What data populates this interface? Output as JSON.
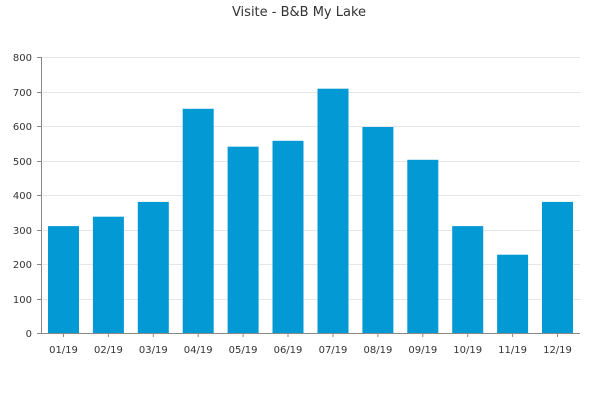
{
  "chart_data": {
    "type": "bar",
    "title": "Visite - B&B My Lake",
    "xlabel": "",
    "ylabel": "",
    "categories": [
      "01/19",
      "02/19",
      "03/19",
      "04/19",
      "05/19",
      "06/19",
      "07/19",
      "08/19",
      "09/19",
      "10/19",
      "11/19",
      "12/19"
    ],
    "values": [
      310,
      337,
      380,
      650,
      540,
      557,
      708,
      597,
      502,
      310,
      227,
      380
    ],
    "ylim": [
      0,
      800
    ],
    "yticks": [
      0,
      100,
      200,
      300,
      400,
      500,
      600,
      700,
      800
    ],
    "grid": true,
    "legend": "none",
    "bar_color": "#0399d4"
  }
}
